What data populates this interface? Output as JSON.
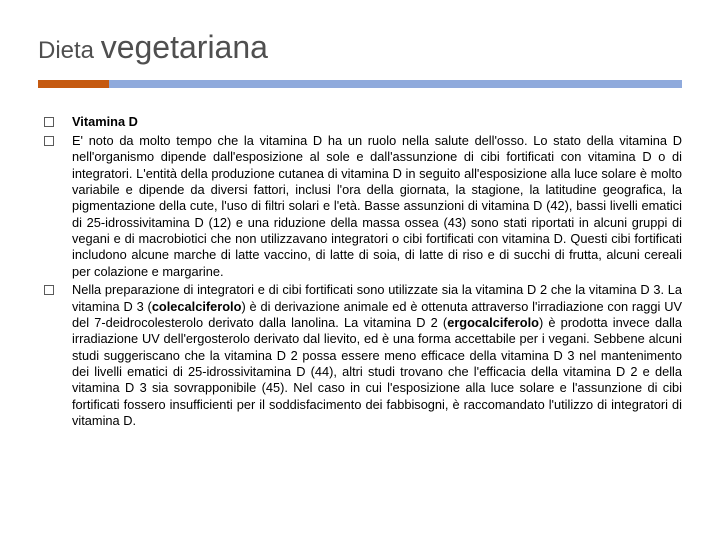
{
  "title_part1": "Dieta ",
  "title_part2": "vegetariana",
  "accent_color_left": "#c55a11",
  "accent_color_right": "#8faadc",
  "bullets": [
    {
      "html": "<b>Vitamina D</b>"
    },
    {
      "html": "E' noto da molto tempo che la vitamina D ha un ruolo nella salute dell'osso. Lo stato della vitamina D nell'organismo dipende dall'esposizione al sole e dall'assunzione di cibi fortificati con vitamina D o di integratori. L'entità della produzione cutanea di vitamina D in seguito all'esposizione alla luce solare è molto variabile e dipende da diversi fattori, inclusi l'ora della giornata, la stagione, la latitudine geografica, la pigmentazione della cute, l'uso di filtri solari e l'età. Basse assunzioni di vitamina D (42), bassi livelli ematici di 25-idrossivitamina D (12) e una riduzione della massa ossea (43) sono stati riportati in alcuni gruppi di vegani e di macrobiotici che non utilizzavano integratori o cibi fortificati con vitamina D. Questi cibi fortificati includono alcune marche di latte vaccino, di latte di soia, di latte di riso e di succhi di frutta, alcuni cereali per colazione e margarine."
    },
    {
      "html": "Nella preparazione di integratori e di cibi fortificati sono utilizzate sia la vitamina D 2 che la vitamina D 3. La vitamina D 3 (<b>colecalciferolo</b>) è di derivazione animale ed è ottenuta attraverso l'irradiazione con raggi UV del 7-deidrocolesterolo derivato dalla lanolina. La vitamina D 2 (<b>ergocalciferolo</b>) è prodotta invece dalla irradiazione UV dell'ergosterolo derivato dal lievito, ed è una forma accettabile per i vegani. Sebbene alcuni studi suggeriscano che la vitamina D 2 possa essere meno efficace della vitamina D 3 nel mantenimento dei livelli ematici di 25-idrossivitamina D (44), altri studi trovano che l'efficacia della vitamina D 2 e della vitamina D 3 sia sovrapponibile (45). Nel caso in cui l'esposizione alla luce solare e l'assunzione di cibi fortificati fossero insufficienti per il soddisfacimento dei fabbisogni, è raccomandato l'utilizzo di integratori di vitamina D."
    }
  ]
}
